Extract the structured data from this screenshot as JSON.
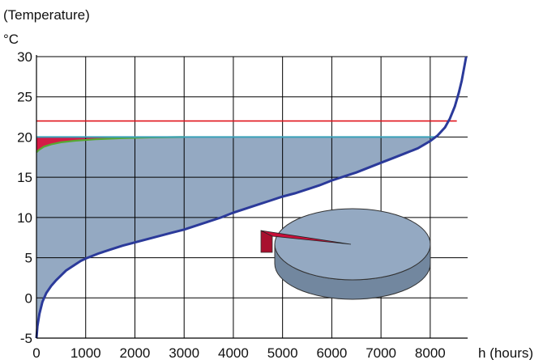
{
  "chart_data": {
    "type": "area",
    "ylabel_top": "(Temperature)",
    "ylabel_unit": "°C",
    "xlabel": "h (hours)",
    "xlim": [
      0,
      8760
    ],
    "ylim": [
      -5,
      30
    ],
    "x_ticks": [
      0,
      1000,
      2000,
      3000,
      4000,
      5000,
      6000,
      7000,
      8000
    ],
    "x_tick_labels": [
      "0",
      "1000",
      "2000",
      "3000",
      "4000",
      "5000",
      "6000",
      "7000",
      "8000"
    ],
    "y_ticks": [
      -5,
      0,
      5,
      10,
      15,
      20,
      25,
      30
    ],
    "y_tick_labels": [
      "-5",
      "0",
      "5",
      "10",
      "15",
      "20",
      "25",
      "30"
    ],
    "grid": true,
    "colors": {
      "duration_curve": "#2b3a9a",
      "fill_area": "#94a9c2",
      "upper_line": "#e0141c",
      "setpoint_line": "#3aa0b8",
      "green_curve": "#57a832",
      "red_area": "#d41a46",
      "pie_top": "#94a9c2",
      "pie_side": "#72879f",
      "pie_slice": "#c8103a"
    },
    "series": [
      {
        "values_x": [
          0,
          20,
          60,
          120,
          200,
          300,
          400,
          500,
          600,
          700,
          800,
          900,
          1000,
          1250,
          1500,
          1750,
          2000,
          2250,
          2500,
          2750,
          3000,
          3250,
          3500,
          3750,
          4000,
          4250,
          4500,
          4750,
          5000,
          5250,
          5500,
          5750,
          6000,
          6250,
          6500,
          6750,
          7000,
          7250,
          7500,
          7750,
          8000,
          8150,
          8300,
          8400,
          8500,
          8580,
          8640,
          8700,
          8730
        ],
        "values_y": [
          -5,
          -3.5,
          -2,
          -0.5,
          0.6,
          1.5,
          2.2,
          2.8,
          3.4,
          3.8,
          4.2,
          4.6,
          4.9,
          5.5,
          6.0,
          6.5,
          6.9,
          7.3,
          7.7,
          8.1,
          8.5,
          9.0,
          9.5,
          10.0,
          10.6,
          11.1,
          11.6,
          12.1,
          12.6,
          13.0,
          13.5,
          14.0,
          14.6,
          15.1,
          15.6,
          16.2,
          16.8,
          17.4,
          18.0,
          18.6,
          19.5,
          20.2,
          21.2,
          22.3,
          23.8,
          25.5,
          27.0,
          29.0,
          30
        ]
      },
      {
        "values_x": [
          0,
          8760
        ],
        "values_y": [
          22,
          22
        ]
      },
      {
        "values_x": [
          0,
          8760
        ],
        "values_y": [
          20,
          20
        ]
      },
      {
        "values_x": [
          0,
          50,
          150,
          300,
          500,
          800,
          1200,
          1700,
          2300,
          3000
        ],
        "values_y": [
          18.1,
          18.4,
          18.8,
          19.1,
          19.35,
          19.55,
          19.72,
          19.85,
          19.95,
          20.0
        ]
      }
    ],
    "pie": {
      "values": [
        98,
        2
      ]
    }
  }
}
